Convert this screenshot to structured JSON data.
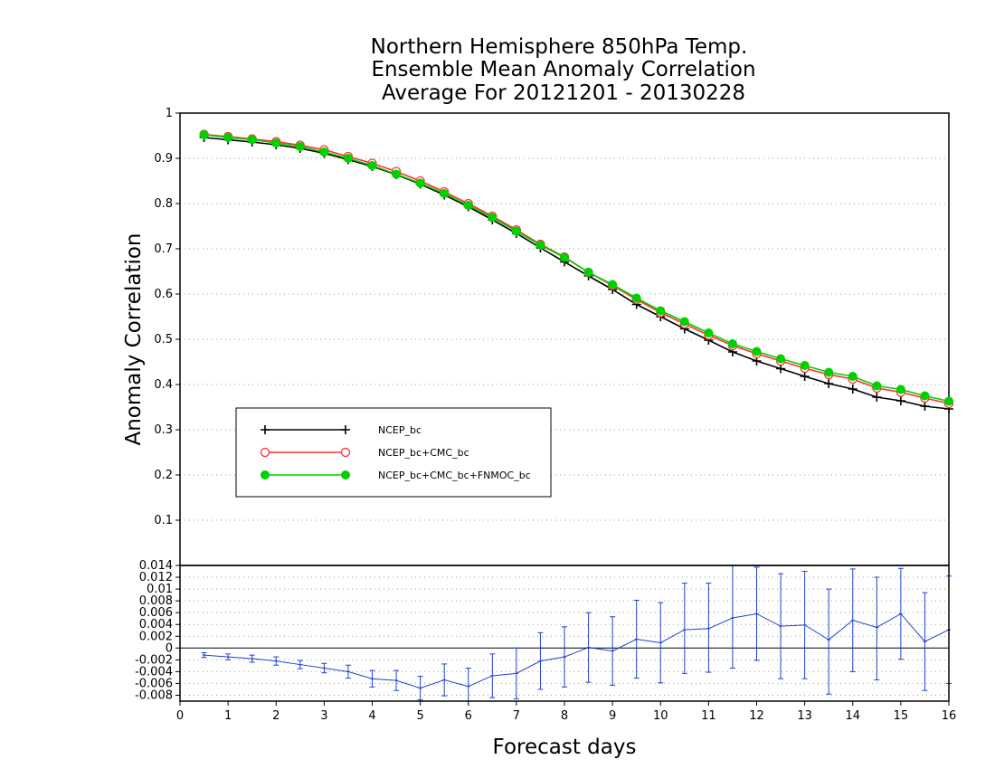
{
  "chart_data": [
    {
      "type": "line",
      "title_lines": [
        "Northern Hemisphere 850hPa Temp.",
        "Ensemble Mean Anomaly Correlation",
        "Average For 20121201 - 20130228"
      ],
      "ylabel": "Anomaly Correlation",
      "xlim": [
        0,
        16
      ],
      "ylim": [
        0,
        1
      ],
      "yticks": [
        "0.1",
        "0.2",
        "0.3",
        "0.4",
        "0.5",
        "0.6",
        "0.7",
        "0.8",
        "0.9",
        "1"
      ],
      "grid": true,
      "legend_placement": "left",
      "x": [
        0.5,
        1,
        1.5,
        2,
        2.5,
        3,
        3.5,
        4,
        4.5,
        5,
        5.5,
        6,
        6.5,
        7,
        7.5,
        8,
        8.5,
        9,
        9.5,
        10,
        10.5,
        11,
        11.5,
        12,
        12.5,
        13,
        13.5,
        14,
        14.5,
        15,
        15.5,
        16
      ],
      "series": [
        {
          "name": "NCEP_bc",
          "color": "#000000",
          "marker": "plus",
          "values": [
            0.946,
            0.941,
            0.936,
            0.93,
            0.922,
            0.911,
            0.897,
            0.882,
            0.864,
            0.843,
            0.819,
            0.793,
            0.764,
            0.734,
            0.702,
            0.671,
            0.64,
            0.61,
            0.577,
            0.55,
            0.523,
            0.498,
            0.472,
            0.452,
            0.435,
            0.418,
            0.402,
            0.39,
            0.372,
            0.364,
            0.352,
            0.346
          ]
        },
        {
          "name": "NCEP_bc+CMC_bc",
          "color": "#ff3030",
          "marker": "open-circle",
          "values": [
            0.953,
            0.948,
            0.943,
            0.937,
            0.929,
            0.919,
            0.904,
            0.889,
            0.871,
            0.85,
            0.826,
            0.8,
            0.772,
            0.742,
            0.71,
            0.682,
            0.648,
            0.619,
            0.588,
            0.559,
            0.534,
            0.509,
            0.486,
            0.468,
            0.452,
            0.436,
            0.422,
            0.412,
            0.392,
            0.383,
            0.37,
            0.358
          ]
        },
        {
          "name": "NCEP_bc+CMC_bc+FNMOC_bc",
          "color": "#00d000",
          "marker": "filled-circle",
          "values": [
            0.952,
            0.946,
            0.941,
            0.934,
            0.926,
            0.914,
            0.9,
            0.884,
            0.865,
            0.845,
            0.822,
            0.796,
            0.769,
            0.739,
            0.708,
            0.681,
            0.648,
            0.621,
            0.591,
            0.563,
            0.539,
            0.514,
            0.49,
            0.473,
            0.457,
            0.442,
            0.427,
            0.418,
            0.397,
            0.389,
            0.375,
            0.363
          ]
        }
      ]
    },
    {
      "type": "line",
      "xlabel": "Forecast days",
      "xlim": [
        0,
        16
      ],
      "ylim": [
        -0.009,
        0.014
      ],
      "xticks": [
        "0",
        "1",
        "2",
        "3",
        "4",
        "5",
        "6",
        "7",
        "8",
        "9",
        "10",
        "11",
        "12",
        "13",
        "14",
        "15",
        "16"
      ],
      "yticks": [
        "-0.008",
        "-0.006",
        "-0.004",
        "-0.002",
        "0",
        "0.002",
        "0.004",
        "0.006",
        "0.008",
        "0.01",
        "0.012",
        "0.014"
      ],
      "zero_line": true,
      "series": [
        {
          "color": "#2040d0",
          "x": [
            0.5,
            1,
            1.5,
            2,
            2.5,
            3,
            3.5,
            4,
            4.5,
            5,
            5.5,
            6,
            6.5,
            7,
            7.5,
            8,
            8.5,
            9,
            9.5,
            10,
            10.5,
            11,
            11.5,
            12,
            12.5,
            13,
            13.5,
            14,
            14.5,
            15,
            15.5,
            16
          ],
          "values": [
            -0.0012,
            -0.0015,
            -0.0018,
            -0.0022,
            -0.0028,
            -0.0034,
            -0.004,
            -0.0052,
            -0.0055,
            -0.0068,
            -0.0054,
            -0.0065,
            -0.0047,
            -0.0043,
            -0.0022,
            -0.0015,
            0.0001,
            -0.0005,
            0.0015,
            0.0009,
            0.0031,
            0.0033,
            0.0051,
            0.0058,
            0.0037,
            0.0039,
            0.0014,
            0.0047,
            0.0035,
            0.0058,
            0.0011,
            0.0031
          ],
          "error_low": [
            -0.0016,
            -0.002,
            -0.0024,
            -0.0029,
            -0.0035,
            -0.0042,
            -0.0051,
            -0.0066,
            -0.0072,
            -0.0088,
            -0.0081,
            -0.0096,
            -0.0084,
            -0.0086,
            -0.007,
            -0.0066,
            -0.0058,
            -0.0063,
            -0.0051,
            -0.0059,
            -0.0043,
            -0.0041,
            -0.0034,
            -0.0021,
            -0.0052,
            -0.0052,
            -0.0078,
            -0.004,
            -0.0054,
            -0.0019,
            -0.0072,
            -0.006
          ],
          "error_high": [
            -0.0008,
            -0.001,
            -0.0012,
            -0.0015,
            -0.0021,
            -0.0026,
            -0.0029,
            -0.0038,
            -0.0038,
            -0.0048,
            -0.0027,
            -0.0034,
            -0.001,
            0.0,
            0.0026,
            0.0036,
            0.006,
            0.0053,
            0.0081,
            0.0077,
            0.011,
            0.011,
            0.014,
            0.0137,
            0.0126,
            0.013,
            0.01,
            0.0134,
            0.012,
            0.0135,
            0.0094,
            0.0122
          ]
        }
      ]
    }
  ]
}
